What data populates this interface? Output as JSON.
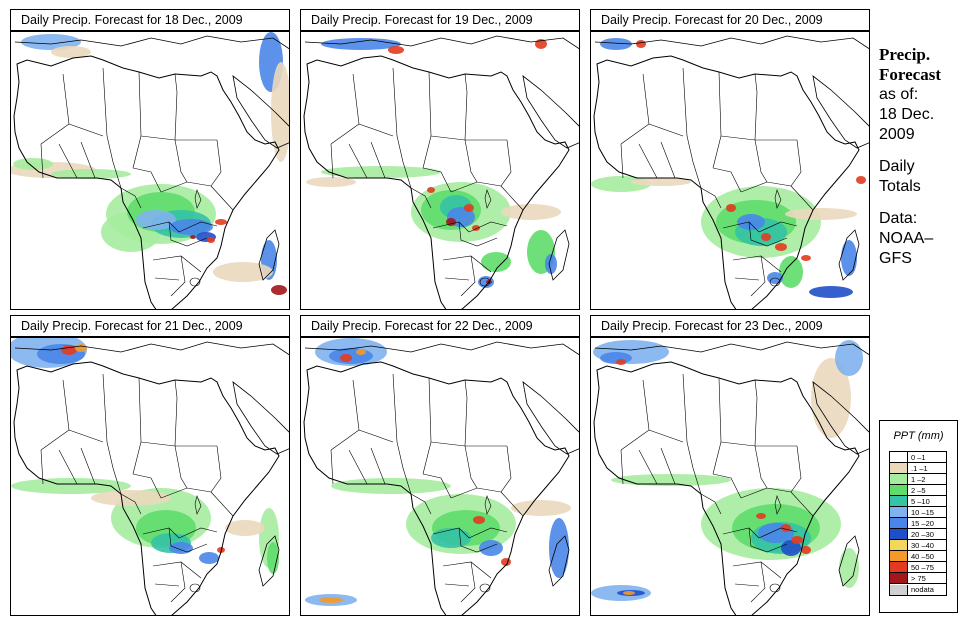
{
  "panels": [
    {
      "title": "Daily Precip. Forecast for  18 Dec., 2009",
      "scene": 0
    },
    {
      "title": "Daily Precip. Forecast for  19 Dec., 2009",
      "scene": 1
    },
    {
      "title": "Daily Precip. Forecast for  20 Dec., 2009",
      "scene": 2
    },
    {
      "title": "Daily Precip. Forecast for  21 Dec., 2009",
      "scene": 3
    },
    {
      "title": "Daily Precip. Forecast for  22 Dec., 2009",
      "scene": 4
    },
    {
      "title": "Daily Precip. Forecast for  23 Dec., 2009",
      "scene": 5
    }
  ],
  "info": {
    "heading1": "Precip.",
    "heading2": "Forecast",
    "line1": "as of:",
    "line2": "18 Dec.",
    "line3": "2009",
    "line4": "Daily",
    "line5": "Totals",
    "line6": "Data:",
    "line7": "NOAA–",
    "line8": "GFS"
  },
  "legend": {
    "title": "PPT (mm)",
    "classes": [
      {
        "label": "0 –1",
        "color": "#ffffff"
      },
      {
        "label": ".1 –1",
        "color": "#ead8bd"
      },
      {
        "label": "1 –2",
        "color": "#a6ec9e"
      },
      {
        "label": "2 –5",
        "color": "#5fdc6a"
      },
      {
        "label": "5 –10",
        "color": "#35c2a6"
      },
      {
        "label": "10 –15",
        "color": "#7fb2ee"
      },
      {
        "label": "15 –20",
        "color": "#4a86e8"
      },
      {
        "label": "20 –30",
        "color": "#1f4fc8"
      },
      {
        "label": "30 –40",
        "color": "#f3d65a"
      },
      {
        "label": "40 –50",
        "color": "#f49a2a"
      },
      {
        "label": "50 –75",
        "color": "#e23b1f"
      },
      {
        "label": "> 75",
        "color": "#a3161a"
      },
      {
        "label": "nodata",
        "color": "#d0d0d0"
      }
    ]
  }
}
